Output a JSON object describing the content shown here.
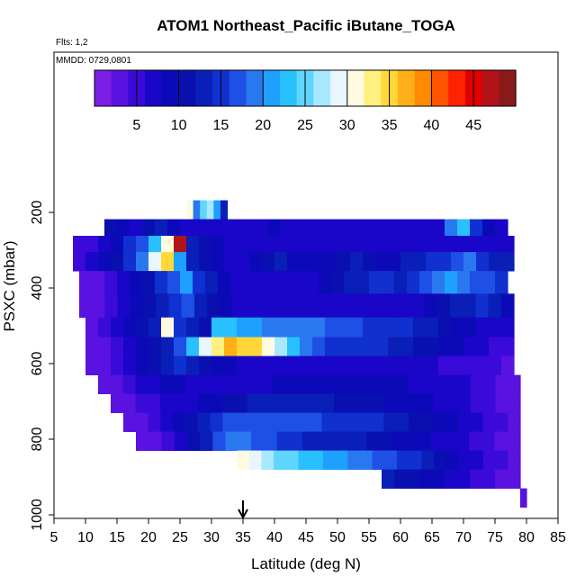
{
  "header": {
    "title": "ATOM1 Northeast_Pacific iButane_TOGA",
    "flights": "Flts: 1,2",
    "mmdd": "MMDD: 0729,0801"
  },
  "colors": {
    "palette": [
      "#7a1ee6",
      "#5a12e0",
      "#3a0ad8",
      "#1a06c8",
      "#0c0ab8",
      "#0a10b0",
      "#0a1eb8",
      "#1030d0",
      "#1e50e6",
      "#2a78f0",
      "#1ea0ff",
      "#28c0ff",
      "#60d6ff",
      "#a8e8ff",
      "#e8f6ff",
      "#fffbe0",
      "#fff080",
      "#ffd838",
      "#ffb018",
      "#ff8a00",
      "#ff5400",
      "#ff2200",
      "#e00000",
      "#b01418",
      "#8a1a1a"
    ]
  },
  "chart_data": {
    "type": "heatmap",
    "title": "ATOM1 Northeast_Pacific iButane_TOGA",
    "xlabel": "Latitude (deg N)",
    "ylabel": "PSXC (mbar)",
    "xlim": [
      5,
      85
    ],
    "ylim": [
      1000,
      0
    ],
    "x_ticks": [
      5,
      10,
      15,
      20,
      25,
      30,
      35,
      40,
      45,
      50,
      55,
      60,
      65,
      70,
      75,
      80,
      85
    ],
    "y_ticks": [
      200,
      400,
      600,
      800,
      1000
    ],
    "colorbar": {
      "range": [
        0,
        50
      ],
      "ticks": [
        5,
        10,
        15,
        20,
        25,
        30,
        35,
        40,
        45
      ],
      "position": "top"
    },
    "marker": {
      "x": 35,
      "label": "arrow"
    },
    "layers": [
      {
        "p_top": 168,
        "p_bot": 218,
        "x_start": 26,
        "x_end": 32.5,
        "values": [
          30,
          18,
          25,
          27,
          20,
          12
        ]
      },
      {
        "p_top": 218,
        "p_bot": 262,
        "x_start": 13,
        "x_end": 77,
        "values": [
          10,
          8,
          6,
          10,
          12,
          8,
          6,
          7,
          6,
          7,
          6,
          6,
          7,
          8,
          6,
          6,
          6,
          6,
          6,
          6,
          6,
          6,
          6,
          6,
          6,
          6,
          7,
          18,
          22,
          14,
          8,
          6
        ]
      },
      {
        "p_top": 262,
        "p_bot": 305,
        "x_start": 8,
        "x_end": 78,
        "values": [
          4,
          4,
          6,
          8,
          14,
          16,
          22,
          30,
          46,
          12,
          10,
          8,
          6,
          6,
          6,
          6,
          6,
          6,
          6,
          6,
          6,
          6,
          6,
          6,
          6,
          6,
          6,
          6,
          6,
          6,
          6,
          6,
          6,
          6,
          6
        ]
      },
      {
        "p_top": 305,
        "p_bot": 355,
        "x_start": 8,
        "x_end": 78,
        "values": [
          4,
          6,
          8,
          10,
          14,
          18,
          28,
          34,
          20,
          12,
          10,
          8,
          7,
          7,
          8,
          10,
          12,
          9,
          8,
          8,
          9,
          10,
          12,
          10,
          9,
          9,
          12,
          13,
          14,
          14,
          16,
          18,
          14,
          12,
          13
        ]
      },
      {
        "p_top": 355,
        "p_bot": 415,
        "x_start": 9,
        "x_end": 77,
        "values": [
          2,
          3,
          5,
          6,
          8,
          10,
          14,
          16,
          20,
          14,
          12,
          8,
          6,
          6,
          6,
          6,
          6,
          6,
          7,
          8,
          10,
          12,
          13,
          14,
          14,
          13,
          14,
          16,
          18,
          20,
          18,
          17,
          16,
          14
        ]
      },
      {
        "p_top": 415,
        "p_bot": 478,
        "x_start": 9,
        "x_end": 78,
        "values": [
          2,
          3,
          4,
          6,
          8,
          10,
          12,
          14,
          16,
          12,
          10,
          8,
          7,
          6,
          6,
          6,
          6,
          6,
          6,
          6,
          6,
          6,
          6,
          6,
          6,
          6,
          7,
          8,
          10,
          12,
          13,
          14,
          12,
          8
        ]
      },
      {
        "p_top": 478,
        "p_bot": 530,
        "x_start": 10,
        "x_end": 78,
        "values": [
          2,
          4,
          6,
          8,
          10,
          12,
          30,
          14,
          12,
          10,
          22,
          22,
          21,
          20,
          19,
          18,
          18,
          18,
          18,
          17,
          16,
          16,
          15,
          15,
          14,
          14,
          13,
          12,
          10,
          8,
          8,
          7,
          6,
          6
        ]
      },
      {
        "p_top": 530,
        "p_bot": 580,
        "x_start": 10,
        "x_end": 78,
        "values": [
          2,
          3,
          5,
          7,
          9,
          10,
          12,
          16,
          22,
          28,
          32,
          36,
          35,
          34,
          30,
          26,
          22,
          18,
          16,
          15,
          14,
          14,
          14,
          14,
          13,
          12,
          10,
          10,
          9,
          8,
          7,
          6,
          5,
          4
        ]
      },
      {
        "p_top": 580,
        "p_bot": 630,
        "x_start": 10,
        "x_end": 78,
        "values": [
          2,
          3,
          4,
          6,
          8,
          10,
          12,
          14,
          12,
          10,
          8,
          8,
          7,
          7,
          7,
          7,
          7,
          7,
          7,
          7,
          7,
          6,
          6,
          6,
          6,
          6,
          6,
          6,
          5,
          5,
          4,
          4,
          4,
          3
        ]
      },
      {
        "p_top": 630,
        "p_bot": 680,
        "x_start": 12,
        "x_end": 79,
        "values": [
          2,
          3,
          4,
          6,
          7,
          8,
          8,
          7,
          6,
          6,
          6,
          6,
          7,
          7,
          8,
          8,
          8,
          8,
          9,
          9,
          9,
          9,
          8,
          8,
          8,
          7,
          7,
          7,
          6,
          6,
          5,
          4,
          3,
          2
        ]
      },
      {
        "p_top": 680,
        "p_bot": 730,
        "x_start": 14,
        "x_end": 79,
        "values": [
          2,
          3,
          4,
          5,
          6,
          6,
          7,
          8,
          9,
          10,
          11,
          12,
          12,
          13,
          13,
          13,
          12,
          12,
          11,
          11,
          10,
          10,
          9,
          9,
          8,
          8,
          7,
          7,
          6,
          5,
          4,
          3,
          2
        ]
      },
      {
        "p_top": 730,
        "p_bot": 780,
        "x_start": 16,
        "x_end": 79,
        "values": [
          2,
          3,
          4,
          6,
          8,
          10,
          12,
          14,
          16,
          16,
          17,
          17,
          17,
          16,
          16,
          16,
          15,
          15,
          15,
          14,
          14,
          13,
          12,
          11,
          10,
          9,
          8,
          7,
          6,
          5,
          4,
          3
        ]
      },
      {
        "p_top": 780,
        "p_bot": 830,
        "x_start": 18,
        "x_end": 79,
        "values": [
          2,
          3,
          5,
          7,
          10,
          13,
          16,
          18,
          18,
          17,
          16,
          15,
          14,
          13,
          12,
          12,
          12,
          12,
          11,
          10,
          9,
          8,
          8,
          7,
          6,
          6,
          5,
          4,
          3,
          2
        ]
      },
      {
        "p_top": 830,
        "p_bot": 880,
        "x_start": 34,
        "x_end": 79,
        "values": [
          30,
          28,
          26,
          25,
          24,
          23,
          22,
          21,
          20,
          19,
          18,
          17,
          16,
          15,
          14,
          12,
          10,
          8,
          7,
          6,
          5,
          4,
          3
        ]
      },
      {
        "p_top": 880,
        "p_bot": 930,
        "x_start": 57,
        "x_end": 79,
        "values": [
          12,
          11,
          10,
          9,
          8,
          7,
          6,
          5,
          4,
          3,
          2
        ]
      },
      {
        "p_top": 930,
        "p_bot": 980,
        "x_start": 79,
        "x_end": 80,
        "values": [
          2
        ]
      }
    ]
  }
}
